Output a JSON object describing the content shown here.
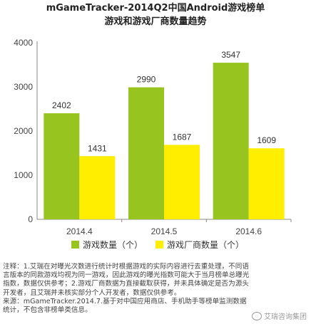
{
  "chart_data": {
    "type": "bar",
    "title": "mGameTracker-2014Q2中国Android游戏榜单",
    "subtitle": "游戏和游戏厂商数量趋势",
    "categories": [
      "2014.4",
      "2014.5",
      "2014.6"
    ],
    "series": [
      {
        "name": "游戏数量（个）",
        "values": [
          2402,
          2990,
          3547
        ],
        "color": "#97c41f"
      },
      {
        "name": "游戏厂商数量（个）",
        "values": [
          1431,
          1687,
          1609
        ],
        "color": "#ffee00"
      }
    ],
    "ylim": [
      0,
      4000
    ],
    "yticks": [
      "0",
      "1000",
      "2000",
      "3000",
      "4000"
    ],
    "grid": false,
    "legend_position": "bottom"
  },
  "notes": {
    "line1": "注释：1.艾瑞在对曝光次数进行统计时根据游戏的实际内容进行去重处理，不同语",
    "line2": "言版本的同款游戏均视为同一游戏，因此游戏的曝光指数可能大于当月榜单总曝光",
    "line3": "指数，数据仅供参考；2.游戏厂商数据为直接截取获得，并未具体确定是否为源头",
    "line4": "开发者，且艾瑞并未核实部分个人开发者，数据仅供参考。",
    "line5": "来源：mGameTracker.2014.7.基于对中国应用商店、手机助手等榜单监测数据",
    "line6": "统计，不包含非榜单类信息。"
  },
  "watermark": "艾瑞咨询集团",
  "watermark_icon": "wechat-icon"
}
